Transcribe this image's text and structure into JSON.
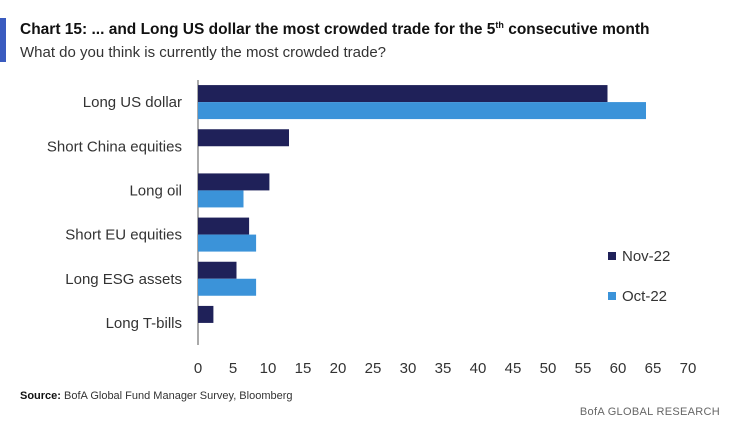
{
  "header": {
    "title_main": "Chart 15: ... and Long US dollar the most crowded trade for the 5",
    "title_sup": "th",
    "title_end": " consecutive month",
    "subtitle": "What do you think is currently the most crowded trade?"
  },
  "colors": {
    "accent": "#3a5bbf",
    "nov": "#1f2159",
    "oct": "#3b93d9"
  },
  "chart_data": {
    "type": "bar",
    "orientation": "horizontal",
    "categories": [
      "Long US dollar",
      "Short China equities",
      "Long oil",
      "Short EU equities",
      "Long ESG assets",
      "Long T-bills"
    ],
    "series": [
      {
        "name": "Nov-22",
        "color": "#1f2159",
        "values": [
          58.5,
          13,
          10.2,
          7.3,
          5.5,
          2.2
        ]
      },
      {
        "name": "Oct-22",
        "color": "#3b93d9",
        "values": [
          64,
          null,
          6.5,
          8.3,
          8.3,
          null
        ]
      }
    ],
    "xlim": [
      0,
      70
    ],
    "xticks": [
      0,
      5,
      10,
      15,
      20,
      25,
      30,
      35,
      40,
      45,
      50,
      55,
      60,
      65,
      70
    ],
    "grid": false,
    "legend_position": "right"
  },
  "footer": {
    "source_label": "Source:",
    "source_text": " BofA Global Fund Manager Survey, Bloomberg",
    "brand": "BofA GLOBAL RESEARCH"
  }
}
